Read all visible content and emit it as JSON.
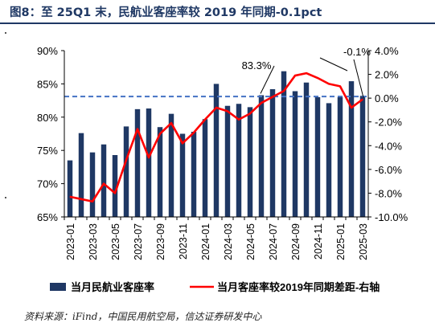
{
  "title": "图8：至 25Q1 末，民航业客座率较 2019 年同期-0.1pct",
  "source": "资料来源：iFind，中国民用航空局，信达证券研发中心",
  "colors": {
    "bar": "#1f3864",
    "line": "#ff0000",
    "dashed": "#4472c4",
    "title": "#1f3864"
  },
  "chart_data": {
    "type": "bar",
    "categories": [
      "2023-01",
      "2023-02",
      "2023-03",
      "2023-04",
      "2023-05",
      "2023-06",
      "2023-07",
      "2023-08",
      "2023-09",
      "2023-10",
      "2023-11",
      "2023-12",
      "2024-01",
      "2024-02",
      "2024-03",
      "2024-04",
      "2024-05",
      "2024-06",
      "2024-07",
      "2024-08",
      "2024-09",
      "2024-10",
      "2024-11",
      "2024-12",
      "2025-01",
      "2025-02",
      "2025-03"
    ],
    "x_tick_labels": [
      "2023-01",
      "2023-03",
      "2023-05",
      "2023-07",
      "2023-09",
      "2023-11",
      "2024-01",
      "2024-03",
      "2024-05",
      "2024-07",
      "2024-09",
      "2024-11",
      "2025-01",
      "2025-03"
    ],
    "series": [
      {
        "name": "当月民航业客座率",
        "type": "bar",
        "axis": "left",
        "values": [
          73.5,
          77.6,
          74.7,
          75.9,
          74.3,
          78.6,
          81.2,
          81.3,
          78.5,
          80.5,
          77.5,
          77.8,
          79.7,
          85.0,
          81.7,
          82.0,
          81.5,
          83.3,
          84.2,
          86.9,
          83.9,
          85.2,
          83.0,
          82.1,
          83.0,
          85.4,
          83.2
        ]
      },
      {
        "name": "当月客座率较2019年同期差距-右轴",
        "type": "line",
        "axis": "right",
        "values": [
          -8.3,
          -8.5,
          -8.7,
          -7.2,
          -8.0,
          -5.2,
          -2.6,
          -5.0,
          -3.0,
          -2.1,
          -3.8,
          -2.9,
          -1.8,
          -0.8,
          -1.1,
          -1.8,
          -1.3,
          -0.4,
          0.1,
          0.6,
          1.9,
          2.1,
          1.7,
          1.2,
          1.0,
          -0.8,
          -0.1
        ]
      }
    ],
    "left_axis": {
      "min": 65,
      "max": 90,
      "ticks": [
        "65%",
        "70%",
        "75%",
        "80%",
        "85%",
        "90%"
      ]
    },
    "right_axis": {
      "min": -10,
      "max": 4,
      "ticks": [
        "4.0%",
        "2.0%",
        "0.0%",
        "-2.0%",
        "-4.0%",
        "-6.0%",
        "-8.0%",
        "-10.0%"
      ]
    },
    "reference_line": {
      "axis": "left",
      "value": 83.1,
      "style": "dashed"
    },
    "annotations": [
      {
        "text": "83.3%",
        "target_category": "2024-06"
      },
      {
        "text": "-0.1%",
        "target_category": "2025-03"
      }
    ],
    "legend": {
      "position": "bottom",
      "items": [
        "当月民航业客座率",
        "当月客座率较2019年同期差距-右轴"
      ]
    }
  }
}
